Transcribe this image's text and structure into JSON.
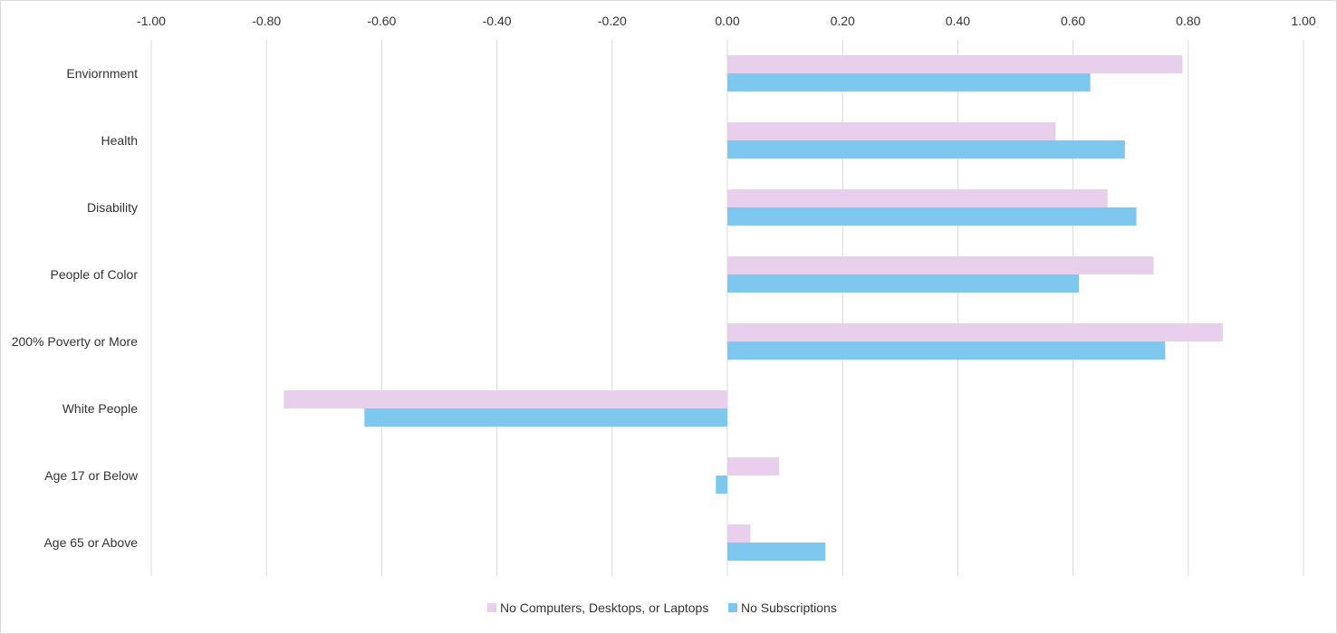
{
  "chart_data": {
    "type": "bar",
    "orientation": "horizontal",
    "categories": [
      "Enviornment",
      "Health",
      "Disability",
      "People of Color",
      "200% Poverty or More",
      "White People",
      "Age 17 or Below",
      "Age 65 or Above"
    ],
    "series": [
      {
        "name": "No Computers, Desktops, or Laptops",
        "color": "#E8D0EC",
        "values": [
          0.79,
          0.57,
          0.66,
          0.74,
          0.86,
          -0.77,
          0.09,
          0.04
        ]
      },
      {
        "name": "No Subscriptions",
        "color": "#7EC8F0",
        "values": [
          0.63,
          0.69,
          0.71,
          0.61,
          0.76,
          -0.63,
          -0.02,
          0.17
        ]
      }
    ],
    "xlim": [
      -1.0,
      1.0
    ],
    "xticks": [
      "-1.00",
      "-0.80",
      "-0.60",
      "-0.40",
      "-0.20",
      "0.00",
      "0.20",
      "0.40",
      "0.60",
      "0.80",
      "1.00"
    ],
    "grid": true,
    "legend_position": "bottom",
    "title": "",
    "xlabel": "",
    "ylabel": ""
  }
}
